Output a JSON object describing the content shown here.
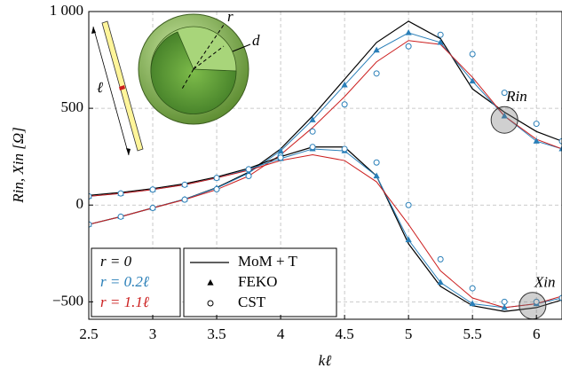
{
  "chart_data": {
    "type": "line",
    "xlabel": "kℓ",
    "ylabel": "Rin, Xin [Ω]",
    "x": [
      2.5,
      2.75,
      3,
      3.25,
      3.5,
      3.75,
      4,
      4.25,
      4.5,
      4.75,
      5,
      5.25,
      5.5,
      5.75,
      6,
      6.2
    ],
    "xlim": [
      2.5,
      6.2
    ],
    "ylim": [
      -590,
      1000
    ],
    "xticks": [
      2.5,
      3,
      3.5,
      4,
      4.5,
      5,
      5.5,
      6
    ],
    "yticks": [
      {
        "value": -500,
        "label": "−500"
      },
      0,
      500,
      {
        "value": 1000,
        "label": "1 000"
      }
    ],
    "grid": true,
    "series": [
      {
        "color": "#000000",
        "marker": "line",
        "values": [
          -100,
          -60,
          -15,
          30,
          90,
          170,
          290,
          460,
          650,
          840,
          950,
          860,
          600,
          480,
          380,
          330
        ]
      },
      {
        "color": "#2a7fb8",
        "marker": "line",
        "values": [
          -100,
          -60,
          -15,
          30,
          88,
          165,
          280,
          440,
          620,
          800,
          890,
          840,
          640,
          460,
          330,
          290
        ]
      },
      {
        "color": "#cc1f1f",
        "marker": "line",
        "values": [
          -100,
          -60,
          -15,
          28,
          80,
          150,
          260,
          400,
          560,
          740,
          850,
          830,
          660,
          460,
          340,
          290
        ]
      },
      {
        "color": "#2a7fb8",
        "marker": "triangle",
        "values": [
          -100,
          -60,
          -15,
          30,
          88,
          165,
          280,
          440,
          620,
          800,
          890,
          840,
          640,
          460,
          330,
          290
        ]
      },
      {
        "color": "#2a7fb8",
        "marker": "circle",
        "values": [
          -100,
          -60,
          -15,
          28,
          82,
          150,
          255,
          380,
          520,
          680,
          820,
          880,
          780,
          580,
          420,
          330
        ]
      },
      {
        "color": "#000000",
        "marker": "line",
        "values": [
          50,
          65,
          85,
          110,
          145,
          190,
          250,
          300,
          300,
          150,
          -200,
          -420,
          -520,
          -550,
          -530,
          -490
        ]
      },
      {
        "color": "#2a7fb8",
        "marker": "line",
        "values": [
          45,
          60,
          80,
          105,
          140,
          185,
          240,
          290,
          280,
          150,
          -180,
          -400,
          -510,
          -530,
          -510,
          -480
        ]
      },
      {
        "color": "#cc1f1f",
        "marker": "line",
        "values": [
          45,
          60,
          80,
          105,
          140,
          180,
          230,
          260,
          230,
          120,
          -100,
          -340,
          -480,
          -530,
          -510,
          -470
        ]
      },
      {
        "color": "#2a7fb8",
        "marker": "triangle",
        "values": [
          45,
          60,
          80,
          105,
          140,
          185,
          240,
          290,
          280,
          150,
          -180,
          -400,
          -510,
          -530,
          -510,
          -480
        ]
      },
      {
        "color": "#2a7fb8",
        "marker": "circle",
        "values": [
          45,
          60,
          80,
          105,
          140,
          185,
          245,
          300,
          290,
          220,
          0,
          -280,
          -430,
          -500,
          -500,
          -480
        ]
      }
    ],
    "legend_radius": [
      {
        "label": "r = 0",
        "color": "#000000"
      },
      {
        "label": "r = 0.2ℓ",
        "color": "#2a7fb8"
      },
      {
        "label": "r = 1.1ℓ",
        "color": "#cc1f1f"
      }
    ],
    "legend_method": [
      {
        "label": "MoM + T",
        "marker": "line"
      },
      {
        "label": "FEKO",
        "marker": "triangle"
      },
      {
        "label": "CST",
        "marker": "circle"
      }
    ],
    "annotations": [
      "Rin",
      "Xin",
      "ℓ",
      "r",
      "d"
    ]
  }
}
